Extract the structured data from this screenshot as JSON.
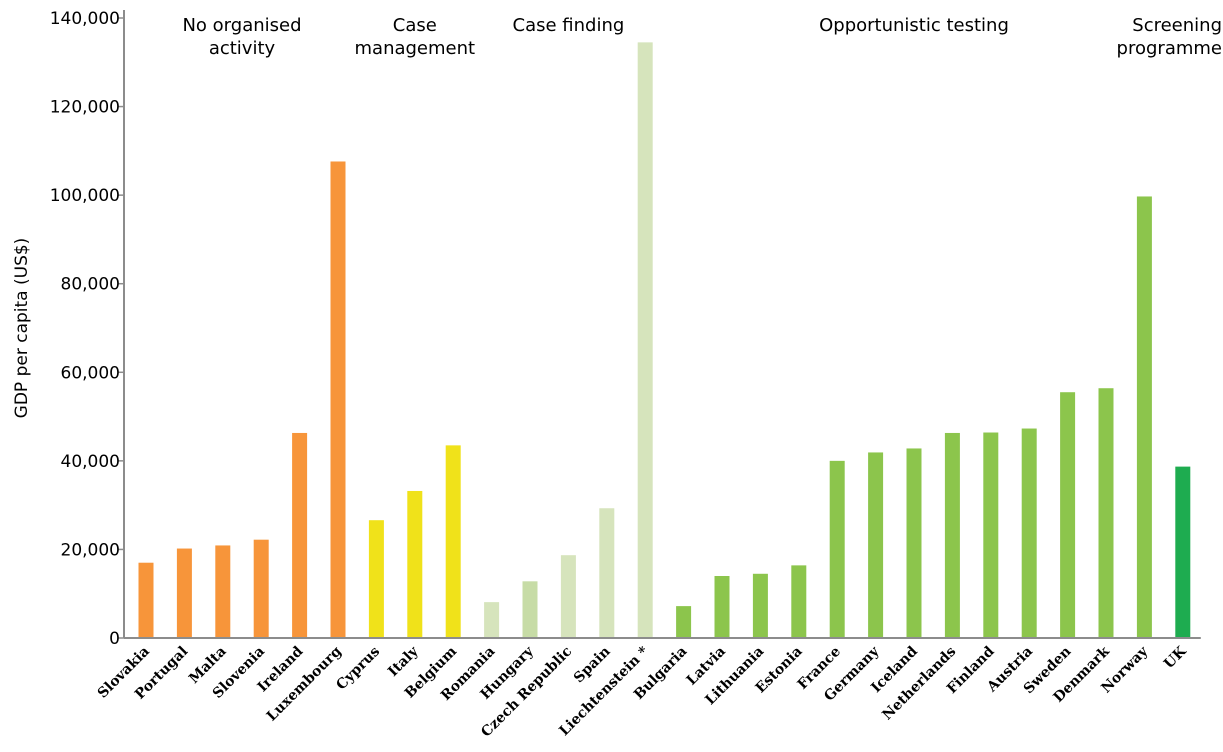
{
  "chart_data": {
    "type": "bar",
    "ylabel": "GDP per capita (US$)",
    "ylim": [
      0,
      140000
    ],
    "yticks": [
      "0",
      "20,000",
      "40,000",
      "60,000",
      "80,000",
      "100,000",
      "120,000",
      "140,000"
    ],
    "grid": false,
    "legend": "none",
    "categories": [
      "Slovakia",
      "Portugal",
      "Malta",
      "Slovenia",
      "Ireland",
      "Luxembourg",
      "Cyprus",
      "Italy",
      "Belgium",
      "Romania",
      "Hungary",
      "Czech Republic",
      "Spain",
      "Liechtenstein *",
      "Bulgaria",
      "Latvia",
      "Lithuania",
      "Estonia",
      "France",
      "Germany",
      "Iceland",
      "Netherlands",
      "Finland",
      "Austria",
      "Sweden",
      "Denmark",
      "Norway",
      "UK"
    ],
    "values": [
      17000,
      20200,
      20900,
      22200,
      46300,
      107600,
      26600,
      33200,
      43500,
      8100,
      12800,
      18700,
      29300,
      134500,
      7200,
      14000,
      14500,
      16400,
      40000,
      41900,
      42800,
      46300,
      46400,
      47300,
      55500,
      56400,
      99700,
      38700
    ],
    "colors": [
      "#f7953a",
      "#f7953a",
      "#f7953a",
      "#f7953a",
      "#f7953a",
      "#f7953a",
      "#f0e21a",
      "#f0e21a",
      "#f0e21a",
      "#d6e4bc",
      "#c7dca6",
      "#d6e4bc",
      "#d6e4bc",
      "#d6e4bc",
      "#8cc54c",
      "#8cc54c",
      "#8cc54c",
      "#8cc54c",
      "#8cc54c",
      "#8cc54c",
      "#8cc54c",
      "#8cc54c",
      "#8cc54c",
      "#8cc54c",
      "#8cc54c",
      "#8cc54c",
      "#8cc54c",
      "#1eac50"
    ],
    "group_labels": [
      {
        "lines": [
          "No organised",
          "activity"
        ],
        "span": [
          0,
          5
        ]
      },
      {
        "lines": [
          "Case",
          "management"
        ],
        "span": [
          6,
          8
        ]
      },
      {
        "lines": [
          "Case finding"
        ],
        "span": [
          9,
          13
        ]
      },
      {
        "lines": [
          "Opportunistic testing"
        ],
        "span": [
          14,
          26
        ]
      },
      {
        "lines": [
          "Screening",
          "programme"
        ],
        "span": [
          27,
          27
        ]
      }
    ]
  }
}
